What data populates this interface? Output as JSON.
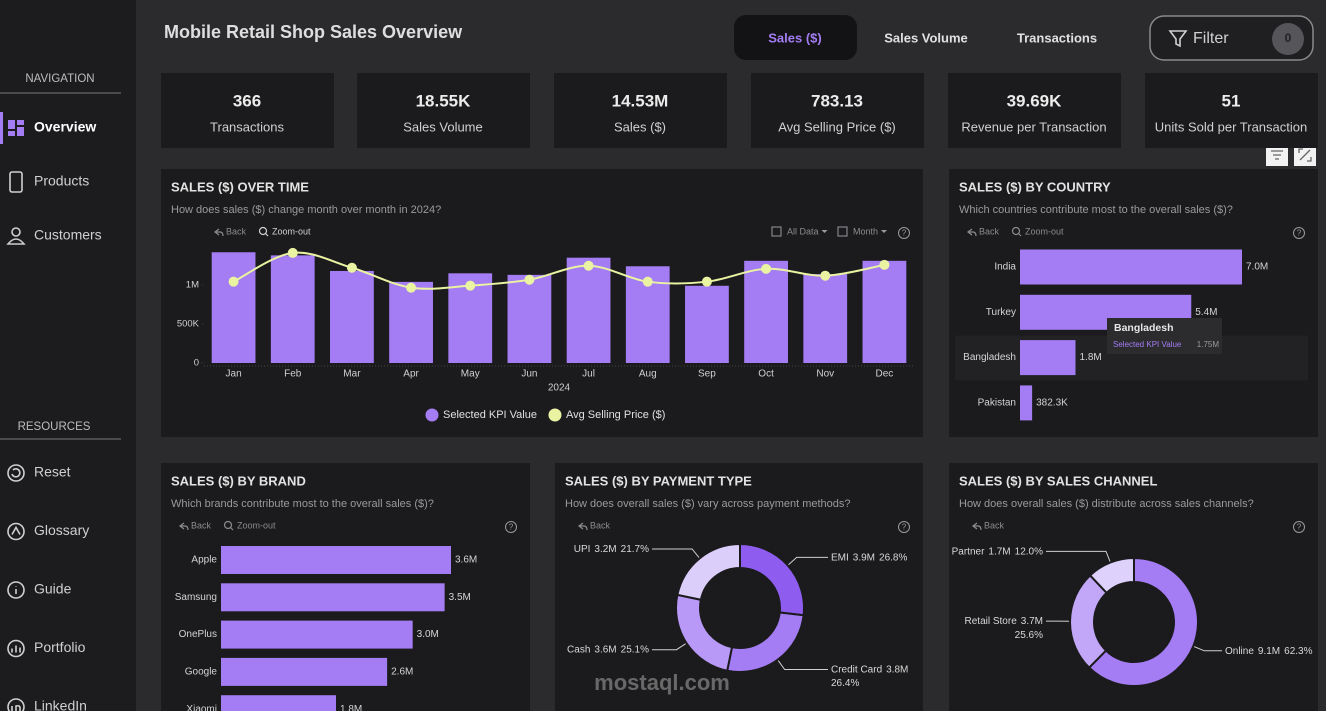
{
  "sidebar": {
    "navigation_heading": "NAVIGATION",
    "navigation": [
      "Overview",
      "Products",
      "Customers"
    ],
    "resources_heading": "RESOURCES",
    "resources": [
      "Reset",
      "Glossary",
      "Guide",
      "Portfolio",
      "LinkedIn"
    ]
  },
  "header": {
    "title": "Mobile Retail Shop Sales Overview",
    "tabs": [
      "Sales ($)",
      "Sales Volume",
      "Transactions"
    ],
    "filter": "Filter",
    "filter_count": 0
  },
  "kpis": [
    {
      "value": 366,
      "label": "Transactions"
    },
    {
      "value": "18.55K",
      "label": "Sales Volume"
    },
    {
      "value": "14.53M",
      "label": "Sales ($)"
    },
    {
      "value": 783.13,
      "label": "Avg Selling Price ($)"
    },
    {
      "value": "39.69K",
      "label": "Revenue per Transaction"
    },
    {
      "value": 51,
      "label": "Units Sold per Transaction"
    }
  ],
  "help_glyph": "?",
  "watermark": "mostaql.com",
  "chart_data": [
    {
      "type": "barline",
      "title": "SALES ($) OVER TIME",
      "subtitle": "How does sales ($) change month over month in 2024?",
      "toolbar": [
        "Back",
        "Zoom-out"
      ],
      "controls": [
        "All Data",
        "Month"
      ],
      "x_label": "2024",
      "categories": [
        "Jan",
        "Feb",
        "Mar",
        "Apr",
        "May",
        "Jun",
        "Jul",
        "Aug",
        "Sep",
        "Oct",
        "Nov",
        "Dec"
      ],
      "series": [
        {
          "name": "Selected KPI Value",
          "color": "#a47cf3",
          "values": [
            1420000,
            1380000,
            1180000,
            1040000,
            1150000,
            1130000,
            1350000,
            1240000,
            990000,
            1310000,
            1140000,
            1310000
          ]
        },
        {
          "name": "Avg Selling Price ($)",
          "color": "#e9f3a2",
          "axis": "y2",
          "values": [
            695,
            941,
            814,
            644,
            661,
            712,
            831,
            695,
            695,
            805,
            746,
            839
          ]
        }
      ],
      "ylim": [
        0,
        1500000
      ],
      "yticks": [
        0,
        {
          "value": 500000,
          "label": "500K"
        },
        {
          "value": 1000000,
          "label": "1M"
        }
      ],
      "y2lim": [
        0,
        1000
      ]
    },
    {
      "type": "hbar",
      "title": "SALES ($) BY COUNTRY",
      "subtitle": "Which countries contribute most to the overall sales ($)?",
      "toolbar": [
        "Back",
        "Zoom-out"
      ],
      "color": "#a47cf3",
      "categories": [
        "India",
        "Turkey",
        "Bangladesh",
        "Pakistan"
      ],
      "values": [
        7000000,
        5400000,
        1750000,
        382300
      ],
      "value_labels": [
        "7.0M",
        "5.4M",
        "1.8M",
        "382.3K"
      ],
      "xlim": [
        0,
        7000000
      ],
      "tooltip": {
        "title": "Bangladesh",
        "label": "Selected KPI Value",
        "value": "1.75M"
      }
    },
    {
      "type": "hbar",
      "title": "SALES ($) BY BRAND",
      "subtitle": "Which brands contribute most to the overall sales ($)?",
      "toolbar": [
        "Back",
        "Zoom-out"
      ],
      "color": "#a47cf3",
      "categories": [
        "Apple",
        "Samsung",
        "OnePlus",
        "Google",
        "Xiaomi"
      ],
      "values": [
        3600000,
        3500000,
        3000000,
        2600000,
        1800000
      ],
      "value_labels": [
        "3.6M",
        "3.5M",
        "3.0M",
        "2.6M",
        "1.8M"
      ],
      "xlim": [
        0,
        3600000
      ]
    },
    {
      "type": "donut",
      "title": "SALES ($) BY PAYMENT TYPE",
      "subtitle": "How does overall sales ($) vary across payment methods?",
      "toolbar": [
        "Back"
      ],
      "categories": [
        "EMI",
        "Credit Card",
        "Cash",
        "UPI"
      ],
      "values": [
        26.8,
        26.4,
        25.1,
        21.7
      ],
      "value_labels": [
        "26.8%",
        "26.4%",
        "25.1%",
        "21.7%"
      ],
      "amount_labels": [
        "3.9M",
        "3.8M",
        "3.6M",
        "3.2M"
      ],
      "colors": [
        "#8f5cf0",
        "#a47cf3",
        "#b999f7",
        "#dccefb"
      ]
    },
    {
      "type": "donut",
      "title": "SALES ($) BY SALES CHANNEL",
      "subtitle": "How does overall sales ($) distribute across sales channels?",
      "toolbar": [
        "Back"
      ],
      "categories": [
        "Online",
        "Retail Store",
        "Partner"
      ],
      "values": [
        62.3,
        25.6,
        12.0
      ],
      "value_labels": [
        "62.3%",
        "25.6%",
        "12.0%"
      ],
      "amount_labels": [
        "9.1M",
        "3.7M",
        "1.7M"
      ],
      "colors": [
        "#a47cf3",
        "#c2a6f8",
        "#ded1fb"
      ]
    }
  ]
}
